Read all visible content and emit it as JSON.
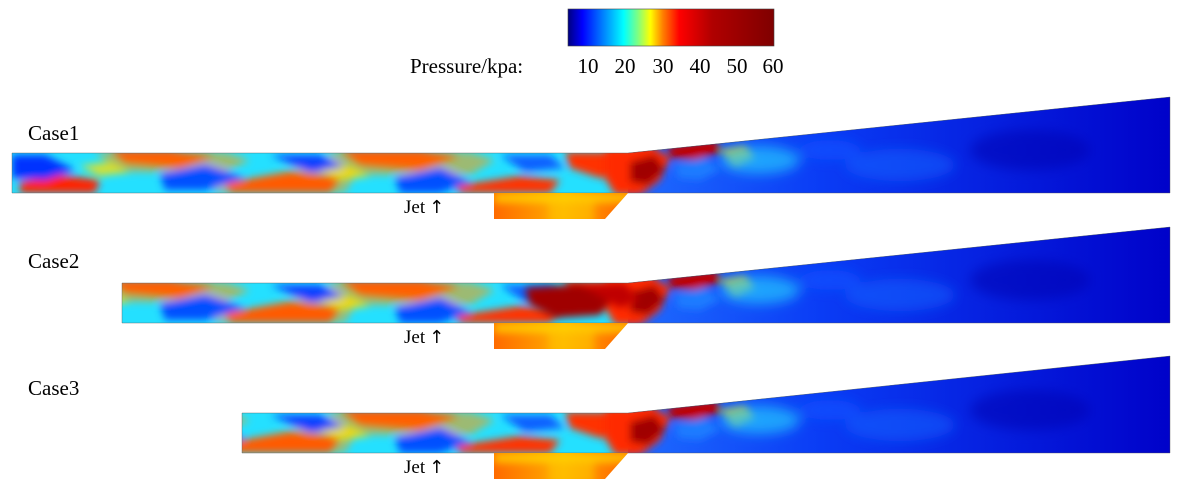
{
  "colorbar": {
    "title": "Pressure/kpa:",
    "ticks": [
      "10",
      "20",
      "30",
      "40",
      "50",
      "60"
    ],
    "colormap": [
      "#00007f",
      "#0000ff",
      "#0080ff",
      "#00ffff",
      "#80ff80",
      "#ffff00",
      "#ff8000",
      "#ff0000",
      "#b00000",
      "#7f0000"
    ]
  },
  "cases": [
    {
      "label": "Case1",
      "jet_label": "Jet"
    },
    {
      "label": "Case2",
      "jet_label": "Jet"
    },
    {
      "label": "Case3",
      "jet_label": "Jet"
    }
  ],
  "jet_arrow": "↑"
}
